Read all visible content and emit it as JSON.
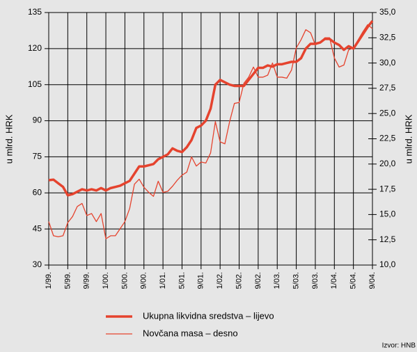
{
  "chart_data": {
    "type": "line",
    "y_label": "u mlrd. HRK",
    "y2_label": "u mlrd. HRK",
    "source": "Izvor: HNB",
    "categories": [
      "1/99.",
      null,
      null,
      null,
      "5/99.",
      null,
      null,
      null,
      "9/99.",
      null,
      null,
      null,
      "1/00.",
      null,
      null,
      null,
      "5/00.",
      null,
      null,
      null,
      "9/00.",
      null,
      null,
      null,
      "1/01.",
      null,
      null,
      null,
      "5/01.",
      null,
      null,
      null,
      "9/01.",
      null,
      null,
      null,
      "1/02.",
      null,
      null,
      null,
      "5/02.",
      null,
      null,
      null,
      "9/02.",
      null,
      null,
      null,
      "1/03.",
      null,
      null,
      null,
      "5/03.",
      null,
      null,
      null,
      "9/03.",
      null,
      null,
      null,
      "1/04.",
      null,
      null,
      null,
      "5/04.",
      null,
      null,
      null,
      "9/04."
    ],
    "series": [
      {
        "name": "Ukupna likvidna sredstva – lijevo",
        "color": "#e5432e",
        "axis": "y",
        "values": [
          65.3,
          65.5,
          64,
          62.5,
          59,
          59.5,
          60.5,
          61.5,
          61,
          61.5,
          61,
          62,
          61,
          62,
          62.5,
          63,
          64,
          65,
          68,
          71,
          71,
          71.5,
          72,
          74,
          75,
          76,
          78.5,
          77.5,
          77,
          79,
          82,
          87,
          88,
          90,
          95,
          105,
          107,
          106,
          105,
          104.5,
          104.5,
          104.5,
          107,
          109.5,
          112,
          112,
          113,
          112.5,
          113.5,
          113.5,
          114,
          114.5,
          114.5,
          116,
          120,
          122,
          122,
          122.5,
          124,
          124,
          122.5,
          121.5,
          119.5,
          121,
          120,
          123,
          126,
          129,
          131.5
        ]
      },
      {
        "name": "Novčana masa – desno",
        "color": "#e5432e",
        "axis": "y2",
        "values": [
          14.3,
          12.9,
          12.8,
          12.9,
          14.2,
          14.8,
          15.8,
          16.1,
          14.9,
          15.1,
          14.3,
          15.1,
          12.6,
          12.9,
          12.9,
          13.6,
          14.3,
          15.6,
          18.0,
          18.5,
          17.7,
          17.2,
          16.8,
          18.3,
          17.2,
          17.3,
          17.8,
          18.4,
          18.9,
          19.2,
          20.7,
          19.8,
          20.2,
          20.1,
          21.1,
          24.2,
          22.2,
          22.0,
          24.2,
          26.0,
          26.1,
          28.0,
          28.6,
          29.6,
          28.6,
          28.6,
          28.8,
          30.0,
          28.6,
          28.6,
          28.5,
          29.3,
          31.5,
          32.3,
          33.3,
          33.0,
          31.8,
          32.0,
          32.5,
          32.5,
          30.5,
          29.6,
          29.8,
          31.3,
          31.5,
          32.3,
          33.1,
          33.8,
          33.4
        ]
      }
    ],
    "ylim": [
      30,
      135
    ],
    "yticks": [
      30,
      45,
      60,
      75,
      90,
      105,
      120,
      135
    ],
    "y2lim": [
      10,
      35
    ],
    "y2ticks": [
      {
        "value": 10,
        "label": "10,0"
      },
      {
        "value": 12.5,
        "label": "12,5"
      },
      {
        "value": 15,
        "label": "15,0"
      },
      {
        "value": 17.5,
        "label": "17,5"
      },
      {
        "value": 20,
        "label": "20,0"
      },
      {
        "value": 22.5,
        "label": "22,5"
      },
      {
        "value": 25,
        "label": "25,0"
      },
      {
        "value": 27.5,
        "label": "27,5"
      },
      {
        "value": 30,
        "label": "30,0"
      },
      {
        "value": 32.5,
        "label": "32,5"
      },
      {
        "value": 35,
        "label": "35,0"
      }
    ],
    "grid": true
  }
}
